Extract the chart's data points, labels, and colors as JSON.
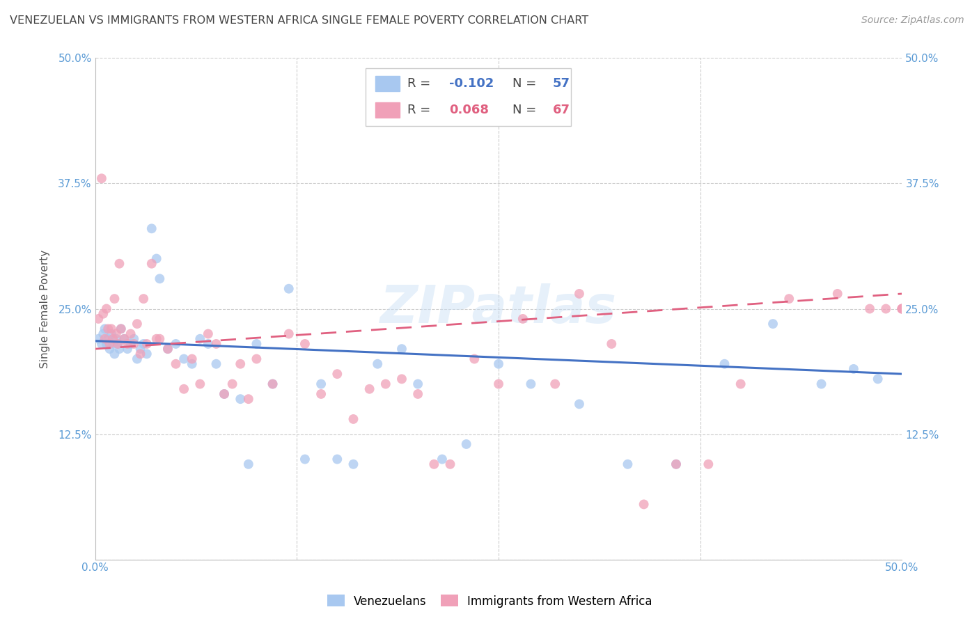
{
  "title": "VENEZUELAN VS IMMIGRANTS FROM WESTERN AFRICA SINGLE FEMALE POVERTY CORRELATION CHART",
  "source": "Source: ZipAtlas.com",
  "ylabel": "Single Female Poverty",
  "xlim": [
    0.0,
    0.5
  ],
  "ylim": [
    0.0,
    0.5
  ],
  "color_blue": "#A8C8F0",
  "color_pink": "#F0A0B8",
  "line_color_blue": "#4472C4",
  "line_color_pink": "#E06080",
  "tick_color": "#5B9BD5",
  "watermark": "ZIPatlas",
  "legend_label1": "Venezuelans",
  "legend_label2": "Immigrants from Western Africa",
  "R1": -0.102,
  "N1": 57,
  "R2": 0.068,
  "N2": 67,
  "venezuelan_x": [
    0.002,
    0.004,
    0.005,
    0.006,
    0.007,
    0.008,
    0.009,
    0.01,
    0.011,
    0.012,
    0.013,
    0.014,
    0.015,
    0.016,
    0.018,
    0.02,
    0.022,
    0.024,
    0.026,
    0.028,
    0.03,
    0.032,
    0.035,
    0.038,
    0.04,
    0.045,
    0.05,
    0.055,
    0.06,
    0.065,
    0.07,
    0.075,
    0.08,
    0.09,
    0.095,
    0.1,
    0.11,
    0.12,
    0.13,
    0.14,
    0.15,
    0.16,
    0.175,
    0.19,
    0.2,
    0.215,
    0.23,
    0.25,
    0.27,
    0.3,
    0.33,
    0.36,
    0.39,
    0.42,
    0.45,
    0.47,
    0.485
  ],
  "venezuelan_y": [
    0.22,
    0.215,
    0.225,
    0.23,
    0.215,
    0.22,
    0.21,
    0.225,
    0.215,
    0.205,
    0.22,
    0.215,
    0.21,
    0.23,
    0.22,
    0.21,
    0.215,
    0.22,
    0.2,
    0.21,
    0.215,
    0.205,
    0.33,
    0.3,
    0.28,
    0.21,
    0.215,
    0.2,
    0.195,
    0.22,
    0.215,
    0.195,
    0.165,
    0.16,
    0.095,
    0.215,
    0.175,
    0.27,
    0.1,
    0.175,
    0.1,
    0.095,
    0.195,
    0.21,
    0.175,
    0.1,
    0.115,
    0.195,
    0.175,
    0.155,
    0.095,
    0.095,
    0.195,
    0.235,
    0.175,
    0.19,
    0.18
  ],
  "western_africa_x": [
    0.002,
    0.004,
    0.005,
    0.006,
    0.007,
    0.008,
    0.009,
    0.01,
    0.011,
    0.012,
    0.013,
    0.014,
    0.015,
    0.016,
    0.018,
    0.02,
    0.022,
    0.024,
    0.026,
    0.028,
    0.03,
    0.032,
    0.035,
    0.038,
    0.04,
    0.045,
    0.05,
    0.055,
    0.06,
    0.065,
    0.07,
    0.075,
    0.08,
    0.085,
    0.09,
    0.095,
    0.1,
    0.11,
    0.12,
    0.13,
    0.14,
    0.15,
    0.16,
    0.17,
    0.18,
    0.19,
    0.2,
    0.21,
    0.22,
    0.235,
    0.25,
    0.265,
    0.285,
    0.3,
    0.32,
    0.34,
    0.36,
    0.38,
    0.4,
    0.43,
    0.46,
    0.48,
    0.49,
    0.5,
    0.5,
    0.5,
    0.5
  ],
  "western_africa_y": [
    0.24,
    0.38,
    0.245,
    0.22,
    0.25,
    0.23,
    0.215,
    0.23,
    0.22,
    0.26,
    0.225,
    0.215,
    0.295,
    0.23,
    0.22,
    0.215,
    0.225,
    0.215,
    0.235,
    0.205,
    0.26,
    0.215,
    0.295,
    0.22,
    0.22,
    0.21,
    0.195,
    0.17,
    0.2,
    0.175,
    0.225,
    0.215,
    0.165,
    0.175,
    0.195,
    0.16,
    0.2,
    0.175,
    0.225,
    0.215,
    0.165,
    0.185,
    0.14,
    0.17,
    0.175,
    0.18,
    0.165,
    0.095,
    0.095,
    0.2,
    0.175,
    0.24,
    0.175,
    0.265,
    0.215,
    0.055,
    0.095,
    0.095,
    0.175,
    0.26,
    0.265,
    0.25,
    0.25,
    0.25,
    0.25,
    0.25,
    0.25
  ]
}
